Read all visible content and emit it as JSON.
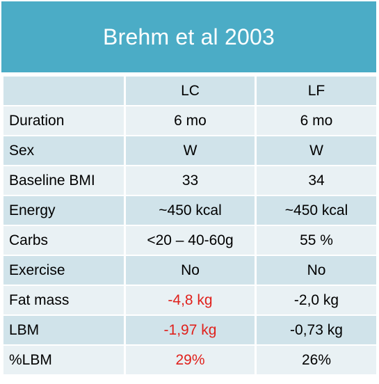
{
  "title": "Brehm et al 2003",
  "columns": [
    "",
    "LC",
    "LF"
  ],
  "rows": [
    {
      "label": "Duration",
      "lc": "6 mo",
      "lf": "6 mo",
      "lc_highlight": false
    },
    {
      "label": "Sex",
      "lc": "W",
      "lf": "W",
      "lc_highlight": false
    },
    {
      "label": "Baseline BMI",
      "lc": "33",
      "lf": "34",
      "lc_highlight": false
    },
    {
      "label": "Energy",
      "lc": "~450 kcal",
      "lf": "~450 kcal",
      "lc_highlight": false
    },
    {
      "label": "Carbs",
      "lc": "<20 – 40-60g",
      "lf": "55 %",
      "lc_highlight": false
    },
    {
      "label": "Exercise",
      "lc": "No",
      "lf": "No",
      "lc_highlight": false
    },
    {
      "label": "Fat mass",
      "lc": "-4,8 kg",
      "lf": "-2,0 kg",
      "lc_highlight": true
    },
    {
      "label": "LBM",
      "lc": "-1,97 kg",
      "lf": "-0,73 kg",
      "lc_highlight": true
    },
    {
      "label": "%LBM",
      "lc": "29%",
      "lf": "26%",
      "lc_highlight": true
    }
  ],
  "colors": {
    "title_bar": "#4bacc6",
    "row_dark": "#d0e3ea",
    "row_light": "#e9f1f4",
    "highlight_text": "#e0201b"
  }
}
